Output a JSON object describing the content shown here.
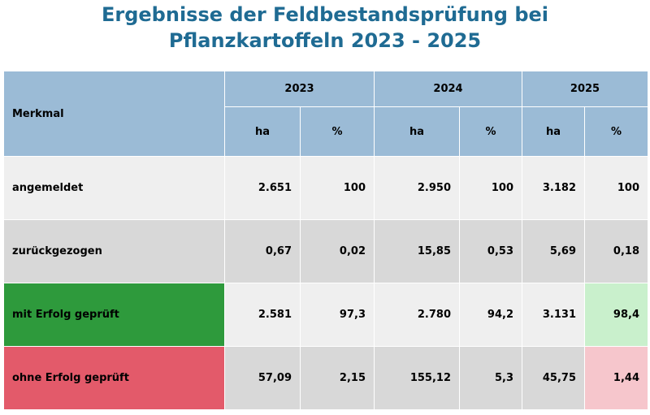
{
  "title": {
    "line1": "Ergebnisse der Feldbestandsprüfung bei",
    "line2": "Pflanzkartoffeln 2023 - 2025"
  },
  "table": {
    "merkmal_header": "Merkmal",
    "years": [
      "2023",
      "2024",
      "2025"
    ],
    "units": [
      "ha",
      "%"
    ],
    "rows": [
      {
        "label": "angemeldet",
        "values": [
          "2.651",
          "100",
          "2.950",
          "100",
          "3.182",
          "100"
        ]
      },
      {
        "label": "zurückgezogen",
        "values": [
          "0,67",
          "0,02",
          "15,85",
          "0,53",
          "5,69",
          "0,18"
        ]
      },
      {
        "label": "mit Erfolg geprüft",
        "values": [
          "2.581",
          "97,3",
          "2.780",
          "94,2",
          "3.131",
          "98,4"
        ]
      },
      {
        "label": "ohne Erfolg geprüft",
        "values": [
          "57,09",
          "2,15",
          "155,12",
          "5,3",
          "45,75",
          "1,44"
        ]
      }
    ]
  },
  "colors": {
    "title": "#1f6b93",
    "header": "#9bbbd6",
    "success": "#2e9a3c",
    "success_light": "#c9f0cc",
    "failure": "#e35a6a",
    "failure_light": "#f6c6cc"
  }
}
